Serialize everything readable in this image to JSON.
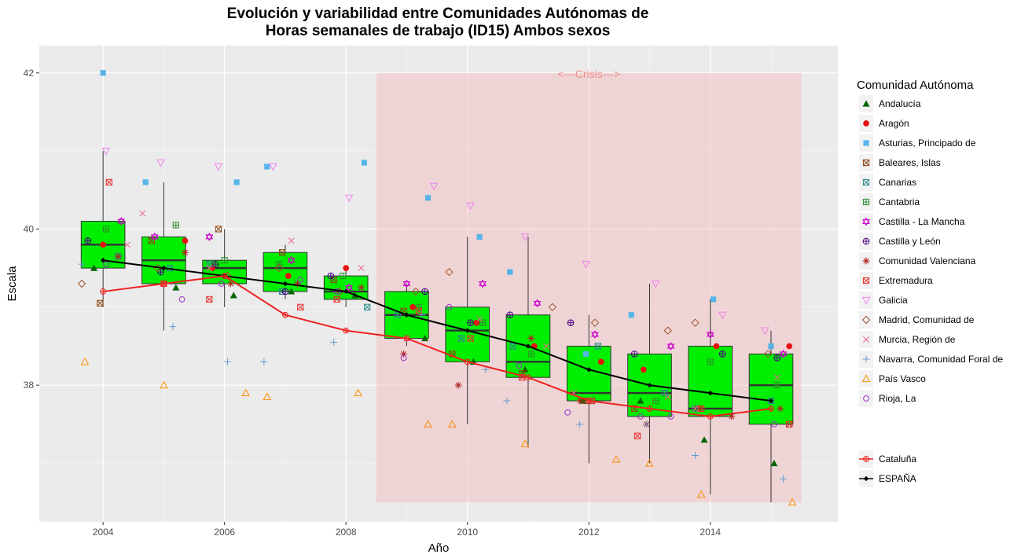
{
  "chart_data": {
    "type": "boxplot",
    "title_line1": "Evolución y variabilidad entre Comunidades Autónomas de",
    "title_line2": "Horas semanales de trabajo (ID15) Ambos sexos",
    "xlabel": "Año",
    "ylabel": "Escala",
    "xlim": [
      2002.95,
      2016.1
    ],
    "ylim": [
      36.25,
      42.35
    ],
    "x_ticks": [
      2004,
      2006,
      2008,
      2010,
      2012,
      2014
    ],
    "y_ticks": [
      38,
      40,
      42
    ],
    "grid": true,
    "legend_title": "Comunidad Autónoma",
    "legend_position": "right",
    "crisis": {
      "label": "<---Crisis--->",
      "x_start": 2008.5,
      "x_end": 2015.5,
      "y_min": 36.5,
      "y_max": 42.0,
      "color": "#f4a8a8"
    },
    "boxes": [
      {
        "x": 2004,
        "q1": 39.5,
        "median": 39.8,
        "q3": 40.1,
        "low": 39.0,
        "high": 41.0
      },
      {
        "x": 2005,
        "q1": 39.3,
        "median": 39.6,
        "q3": 39.9,
        "low": 38.7,
        "high": 40.6
      },
      {
        "x": 2006,
        "q1": 39.3,
        "median": 39.5,
        "q3": 39.6,
        "low": 39.0,
        "high": 40.0
      },
      {
        "x": 2007,
        "q1": 39.2,
        "median": 39.5,
        "q3": 39.7,
        "low": 39.1,
        "high": 39.8
      },
      {
        "x": 2008,
        "q1": 39.1,
        "median": 39.2,
        "q3": 39.4,
        "low": 39.0,
        "high": 39.5
      },
      {
        "x": 2009,
        "q1": 38.6,
        "median": 38.9,
        "q3": 39.2,
        "low": 38.5,
        "high": 39.3
      },
      {
        "x": 2010,
        "q1": 38.3,
        "median": 38.7,
        "q3": 39.0,
        "low": 37.5,
        "high": 39.9
      },
      {
        "x": 2011,
        "q1": 38.1,
        "median": 38.3,
        "q3": 38.9,
        "low": 37.2,
        "high": 39.9
      },
      {
        "x": 2012,
        "q1": 37.8,
        "median": 37.9,
        "q3": 38.5,
        "low": 37.0,
        "high": 38.9
      },
      {
        "x": 2013,
        "q1": 37.6,
        "median": 37.9,
        "q3": 38.4,
        "low": 37.0,
        "high": 39.3
      },
      {
        "x": 2014,
        "q1": 37.6,
        "median": 37.7,
        "q3": 38.5,
        "low": 36.6,
        "high": 39.1
      },
      {
        "x": 2015,
        "q1": 37.5,
        "median": 38.0,
        "q3": 38.4,
        "low": 36.5,
        "high": 38.7
      }
    ],
    "box_color": "#00ee00",
    "lines": [
      {
        "name": "ESPAÑA",
        "color": "#000000",
        "marker": "diamond",
        "x": [
          2004,
          2005,
          2006,
          2007,
          2008,
          2009,
          2010,
          2011,
          2012,
          2013,
          2014,
          2015
        ],
        "y": [
          39.6,
          39.5,
          39.4,
          39.3,
          39.2,
          38.9,
          38.7,
          38.5,
          38.2,
          38.0,
          37.9,
          37.8
        ]
      },
      {
        "name": "Cataluña",
        "color": "#ee2222",
        "marker": "circle-plus",
        "x": [
          2004,
          2005,
          2006,
          2007,
          2008,
          2009,
          2010,
          2011,
          2012,
          2013,
          2014,
          2015
        ],
        "y": [
          39.2,
          39.3,
          39.4,
          38.9,
          38.7,
          38.6,
          38.3,
          38.1,
          37.8,
          37.7,
          37.6,
          37.7
        ]
      }
    ],
    "series": [
      {
        "name": "Andalucía",
        "marker": "triangle-filled",
        "color": "#006400",
        "x": [
          2003.85,
          2005.2,
          2006.15,
          2007.1,
          2008.15,
          2009.3,
          2010.1,
          2010.95,
          2011.9,
          2012.85,
          2013.9,
          2015.05
        ],
        "y": [
          39.5,
          39.25,
          39.15,
          39.2,
          39.15,
          38.6,
          38.3,
          38.2,
          37.8,
          37.8,
          37.3,
          37.0
        ]
      },
      {
        "name": "Aragón",
        "marker": "circle-filled",
        "color": "#e81010",
        "x": [
          2004.0,
          2005.35,
          2005.8,
          2007.05,
          2008.0,
          2009.1,
          2010.15,
          2011.1,
          2012.2,
          2012.9,
          2014.1,
          2015.3
        ],
        "y": [
          39.8,
          39.85,
          39.5,
          39.4,
          39.5,
          39.0,
          38.8,
          38.5,
          38.3,
          38.2,
          38.5,
          38.5
        ]
      },
      {
        "name": "Asturias, Principado de",
        "marker": "square-filled",
        "color": "#56b4e9",
        "x": [
          2004.0,
          2004.7,
          2006.2,
          2006.7,
          2008.3,
          2009.35,
          2010.2,
          2010.7,
          2011.95,
          2012.7,
          2014.05,
          2015.0
        ],
        "y": [
          42.0,
          40.6,
          40.6,
          40.8,
          40.85,
          40.4,
          39.9,
          39.45,
          38.4,
          38.9,
          39.1,
          38.5
        ]
      },
      {
        "name": "Baleares, Islas",
        "marker": "square-x",
        "color": "#8b4513",
        "x": [
          2003.95,
          2004.8,
          2005.9,
          2006.95,
          2007.8,
          2008.95,
          2009.75,
          2010.9,
          2011.95,
          2012.75,
          2013.8,
          2015.3
        ],
        "y": [
          39.05,
          39.85,
          40.0,
          39.7,
          39.35,
          38.95,
          38.4,
          38.15,
          37.8,
          37.7,
          37.7,
          37.5
        ]
      },
      {
        "name": "Canarias",
        "marker": "square-x",
        "color": "#2e8b8b",
        "x": [
          2004.25,
          2005.1,
          2005.75,
          2006.95,
          2008.35,
          2008.85,
          2009.9,
          2010.75,
          2012.15,
          2013.25,
          2013.75,
          2015.0
        ],
        "y": [
          39.65,
          39.5,
          39.55,
          39.2,
          39.0,
          38.9,
          38.6,
          38.5,
          38.5,
          37.9,
          37.7,
          37.8
        ]
      },
      {
        "name": "Cantabria",
        "marker": "square-plus",
        "color": "#2e8b2e",
        "x": [
          2004.05,
          2005.2,
          2006.0,
          2006.9,
          2007.95,
          2009.2,
          2010.25,
          2011.05,
          2012.05,
          2013.1,
          2014.0,
          2015.1
        ],
        "y": [
          40.0,
          40.05,
          39.6,
          39.55,
          39.4,
          39.0,
          38.8,
          38.4,
          37.8,
          37.8,
          38.3,
          38.0
        ]
      },
      {
        "name": "Castilla - La Mancha",
        "marker": "star6",
        "color": "#cc00cc",
        "x": [
          2004.3,
          2004.85,
          2005.75,
          2007.1,
          2008.05,
          2009.0,
          2010.25,
          2011.15,
          2012.1,
          2013.35,
          2014.0,
          2015.2
        ],
        "y": [
          40.1,
          39.9,
          39.9,
          39.6,
          39.25,
          39.3,
          39.3,
          39.05,
          38.65,
          38.5,
          38.65,
          38.4
        ]
      },
      {
        "name": "Castilla y León",
        "marker": "circle-plus",
        "color": "#4b0082",
        "x": [
          2003.75,
          2004.95,
          2005.85,
          2007.0,
          2007.75,
          2009.3,
          2010.05,
          2010.7,
          2011.7,
          2012.75,
          2014.2,
          2015.1
        ],
        "y": [
          39.85,
          39.45,
          39.55,
          39.2,
          39.4,
          39.2,
          38.8,
          38.9,
          38.8,
          38.4,
          38.4,
          38.35
        ]
      },
      {
        "name": "Comunidad Valenciana",
        "marker": "asterisk",
        "color": "#b22222",
        "x": [
          2004.25,
          2005.35,
          2006.1,
          2007.2,
          2008.25,
          2008.95,
          2009.85,
          2011.05,
          2011.85,
          2012.95,
          2014.35,
          2015.15
        ],
        "y": [
          39.65,
          39.7,
          39.3,
          39.3,
          39.25,
          38.4,
          38.0,
          38.6,
          37.8,
          37.5,
          37.6,
          37.7
        ]
      },
      {
        "name": "Extremadura",
        "marker": "square-x",
        "color": "#e83030",
        "x": [
          2004.1,
          2005.0,
          2005.75,
          2007.25,
          2007.85,
          2009.2,
          2010.05,
          2010.9,
          2012.05,
          2012.8,
          2013.85,
          2015.3
        ],
        "y": [
          40.6,
          39.3,
          39.1,
          39.0,
          39.1,
          38.95,
          38.6,
          38.1,
          37.8,
          37.35,
          37.7,
          37.5
        ]
      },
      {
        "name": "Galicia",
        "marker": "triangle-down",
        "color": "#ee82ee",
        "x": [
          2004.05,
          2004.95,
          2005.9,
          2006.8,
          2008.05,
          2009.45,
          2010.05,
          2010.95,
          2011.95,
          2013.1,
          2014.2,
          2014.9
        ],
        "y": [
          41.0,
          40.85,
          40.8,
          40.8,
          40.4,
          40.55,
          40.3,
          39.9,
          39.55,
          39.3,
          38.9,
          38.7
        ]
      },
      {
        "name": "Madrid, Comunidad de",
        "marker": "diamond-open",
        "color": "#a0522d",
        "x": [
          2003.65,
          2004.9,
          2006.05,
          2006.9,
          2007.9,
          2009.15,
          2009.7,
          2011.4,
          2012.1,
          2013.3,
          2013.75,
          2014.95
        ],
        "y": [
          39.3,
          39.5,
          39.4,
          39.5,
          39.2,
          39.2,
          39.45,
          39.0,
          38.8,
          38.7,
          38.8,
          38.4
        ]
      },
      {
        "name": "Murcia, Región de",
        "marker": "x",
        "color": "#ee6a8a",
        "x": [
          2004.4,
          2004.65,
          2005.75,
          2007.1,
          2008.25,
          2009.0,
          2010.2,
          2011.3,
          2011.75,
          2013.3,
          2013.75,
          2015.1
        ],
        "y": [
          39.8,
          40.2,
          39.5,
          39.85,
          39.5,
          38.6,
          38.85,
          38.5,
          37.9,
          37.85,
          37.7,
          38.1
        ]
      },
      {
        "name": "Navarra, Comunidad Foral de",
        "marker": "plus",
        "color": "#6699cc",
        "x": [
          2003.65,
          2005.15,
          2006.05,
          2006.65,
          2007.8,
          2009.25,
          2010.3,
          2010.65,
          2011.85,
          2012.95,
          2013.75,
          2015.2
        ],
        "y": [
          39.55,
          38.75,
          38.3,
          38.3,
          38.55,
          38.9,
          38.2,
          37.8,
          37.5,
          37.5,
          37.1,
          36.8
        ]
      },
      {
        "name": "País Vasco",
        "marker": "triangle-open",
        "color": "#ff8c00",
        "x": [
          2003.7,
          2005.0,
          2006.35,
          2006.7,
          2008.2,
          2009.35,
          2009.75,
          2010.95,
          2012.45,
          2013.0,
          2013.85,
          2015.35
        ],
        "y": [
          38.3,
          38.0,
          37.9,
          37.85,
          37.9,
          37.5,
          37.5,
          37.25,
          37.05,
          37.0,
          36.6,
          36.5
        ]
      },
      {
        "name": "Rioja, La",
        "marker": "circle-open",
        "color": "#9932cc",
        "x": [
          2004.05,
          2005.3,
          2005.95,
          2007.25,
          2007.85,
          2008.95,
          2009.7,
          2010.85,
          2011.65,
          2012.85,
          2013.35,
          2015.05
        ],
        "y": [
          39.55,
          39.1,
          39.3,
          39.35,
          39.2,
          38.35,
          39.0,
          38.25,
          37.65,
          37.6,
          37.6,
          37.5
        ]
      }
    ],
    "legend_items": [
      {
        "name": "Andalucía",
        "marker": "triangle-filled",
        "color": "#006400"
      },
      {
        "name": "Aragón",
        "marker": "circle-filled",
        "color": "#e81010"
      },
      {
        "name": "Asturias, Principado de",
        "marker": "square-filled",
        "color": "#56b4e9"
      },
      {
        "name": "Baleares, Islas",
        "marker": "square-x",
        "color": "#8b4513"
      },
      {
        "name": "Canarias",
        "marker": "square-x",
        "color": "#2e8b8b"
      },
      {
        "name": "Cantabria",
        "marker": "square-plus",
        "color": "#2e8b2e"
      },
      {
        "name": "Castilla - La Mancha",
        "marker": "star6",
        "color": "#cc00cc"
      },
      {
        "name": "Castilla y León",
        "marker": "circle-plus",
        "color": "#4b0082"
      },
      {
        "name": "Comunidad Valenciana",
        "marker": "asterisk",
        "color": "#b22222"
      },
      {
        "name": "Extremadura",
        "marker": "square-x",
        "color": "#e83030"
      },
      {
        "name": "Galicia",
        "marker": "triangle-down",
        "color": "#ee82ee"
      },
      {
        "name": "Madrid, Comunidad de",
        "marker": "diamond-open",
        "color": "#a0522d"
      },
      {
        "name": "Murcia, Región de",
        "marker": "x",
        "color": "#ee6a8a"
      },
      {
        "name": "Navarra, Comunidad Foral de",
        "marker": "plus",
        "color": "#6699cc"
      },
      {
        "name": "País Vasco",
        "marker": "triangle-open",
        "color": "#ff8c00"
      },
      {
        "name": "Rioja, La",
        "marker": "circle-open",
        "color": "#9932cc"
      }
    ],
    "legend_items_2": [
      {
        "name": "Cataluña",
        "marker": "circle-plus",
        "color": "#ee2222",
        "line": true
      },
      {
        "name": "ESPAÑA",
        "marker": "diamond",
        "color": "#000000",
        "line": true
      }
    ]
  }
}
